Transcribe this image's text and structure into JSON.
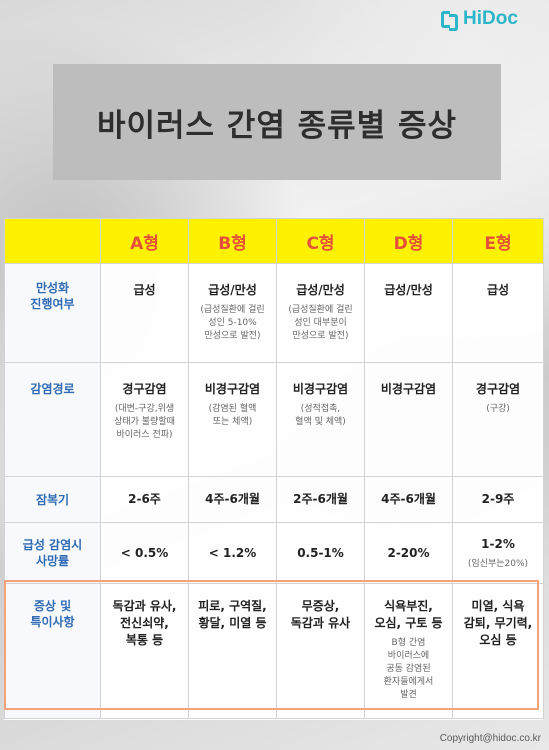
{
  "logo": {
    "text": "HiDoc"
  },
  "title": "바이러스 간염 종류별 증상",
  "table": {
    "columns": [
      "A형",
      "B형",
      "C형",
      "D형",
      "E형"
    ],
    "rows": [
      {
        "label": "만성화\n진행여부",
        "cells": [
          {
            "main": "급성",
            "note": ""
          },
          {
            "main": "급성/만성",
            "note": "(급성질환에 걸린\n성인 5-10%\n만성으로 발전)"
          },
          {
            "main": "급성/만성",
            "note": "(급성질환에 걸린\n성인 대부분이\n만성으로 발전)"
          },
          {
            "main": "급성/만성",
            "note": ""
          },
          {
            "main": "급성",
            "note": ""
          }
        ]
      },
      {
        "label": "감염경로",
        "cells": [
          {
            "main": "경구감염",
            "note": "(대변-구강,위생\n상태가 불량할때\n바이러스 전파)"
          },
          {
            "main": "비경구감염",
            "note": "(감염된 혈액\n또는 체액)"
          },
          {
            "main": "비경구감염",
            "note": "(성적접촉,\n혈액 및 체액)"
          },
          {
            "main": "비경구감염",
            "note": ""
          },
          {
            "main": "경구감염",
            "note": "(구강)"
          }
        ]
      },
      {
        "label": "잠복기",
        "cells": [
          {
            "main": "2-6주",
            "note": ""
          },
          {
            "main": "4주-6개월",
            "note": ""
          },
          {
            "main": "2주-6개월",
            "note": ""
          },
          {
            "main": "4주-6개월",
            "note": ""
          },
          {
            "main": "2-9주",
            "note": ""
          }
        ]
      },
      {
        "label": "급성 감염시\n사망률",
        "cells": [
          {
            "main": "< 0.5%",
            "note": ""
          },
          {
            "main": "< 1.2%",
            "note": ""
          },
          {
            "main": "0.5-1%",
            "note": ""
          },
          {
            "main": "2-20%",
            "note": ""
          },
          {
            "main": "1-2%",
            "note": "(임신부는20%)"
          }
        ]
      },
      {
        "label": "증상 및\n특이사항",
        "cells": [
          {
            "main": "독감과 유사,\n전신쇠약,\n복통 등",
            "note": ""
          },
          {
            "main": "피로, 구역질,\n황달, 미열 등",
            "note": ""
          },
          {
            "main": "무증상,\n독감과 유사",
            "note": ""
          },
          {
            "main": "식욕부진,\n오심, 구토 등",
            "note": "B형 간염\n바이러스에\n공동 감염된\n환자들에게서\n발견"
          },
          {
            "main": "미열, 식욕\n감퇴, 무기력,\n오심 등",
            "note": ""
          }
        ]
      }
    ]
  },
  "copyright": "Copyright@hidoc.co.kr",
  "colors": {
    "header_bg": "#fff200",
    "header_text": "#e4503a",
    "label_text": "#2f6ab4",
    "highlight_border": "#f5a37c",
    "brand": "#2bb6c9"
  }
}
